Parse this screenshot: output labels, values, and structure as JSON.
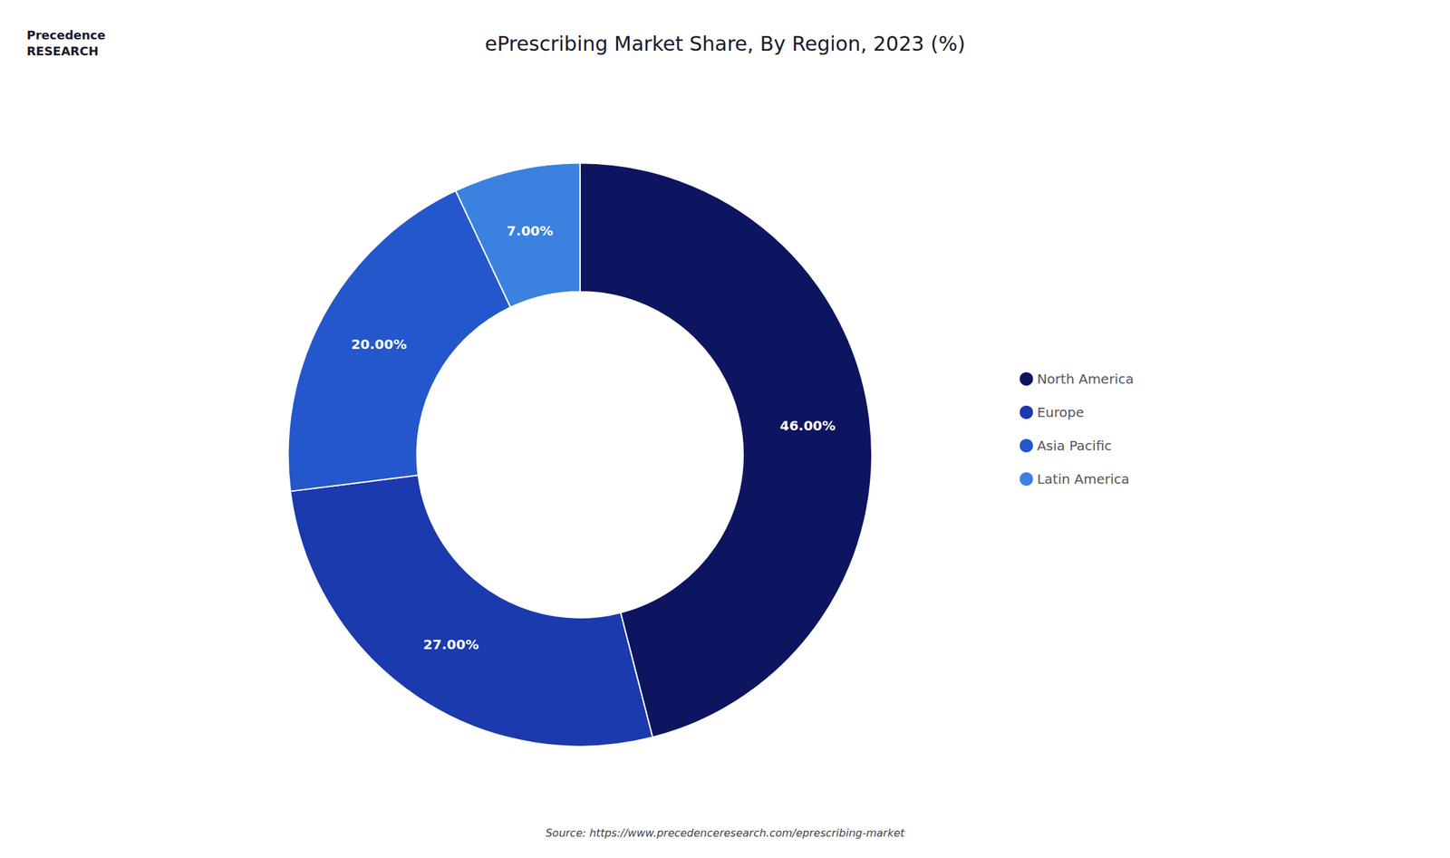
{
  "chart_data": {
    "type": "pie",
    "title": "ePrescribing Market Share, By Region, 2023 (%)",
    "categories": [
      "North America",
      "Europe",
      "Asia Pacific",
      "Latin America"
    ],
    "values": [
      46.0,
      27.0,
      20.0,
      7.0
    ],
    "value_labels": [
      "46.00%",
      "27.00%",
      "20.00%",
      "7.00%"
    ],
    "data_labels": true,
    "colors": [
      "#0d1560",
      "#1a3aad",
      "#2457cc",
      "#3b82e0"
    ],
    "legend": "right",
    "annotations": [
      "Precedence\nRESEARCH",
      "Source: https://www.precedenceresearch.com/eprescribing-market"
    ]
  }
}
